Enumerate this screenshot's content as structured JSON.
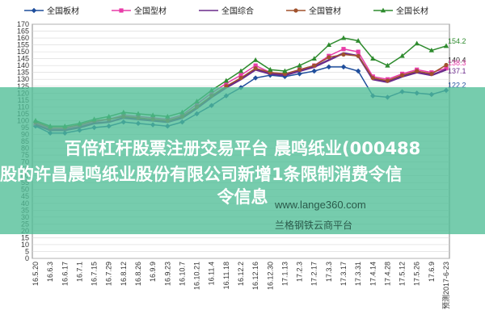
{
  "chart_data": {
    "type": "line",
    "title": "",
    "xlabel": "",
    "ylabel": "",
    "ylim": [
      0,
      170
    ],
    "yticks": [
      0,
      5,
      10,
      15,
      20,
      25,
      30,
      35,
      40,
      45,
      50,
      55,
      60,
      65,
      70,
      75,
      80,
      85,
      90,
      95,
      100,
      105,
      110,
      115,
      120,
      125,
      130,
      135,
      140,
      145,
      150,
      155,
      160,
      165,
      170
    ],
    "grid": true,
    "legend": "top",
    "categories": [
      "16.5.20",
      "16.6.3",
      "16.6.17",
      "16.7.1",
      "16.7.15",
      "16.7.29",
      "16.8.12",
      "16.8.26",
      "16.9.9",
      "16.9.23",
      "16.10.7",
      "16.10.21",
      "16.11.4",
      "16.11.18",
      "16.12.2",
      "16.12.16",
      "16.12.30",
      "17.1.13",
      "17.2.3",
      "17.2.17",
      "17.3.3",
      "17.3.17",
      "17.3.31",
      "17.4.14",
      "17.4.28",
      "17.5.12",
      "17.5.26",
      "17.6.9",
      "预测2017-6-23"
    ],
    "series": [
      {
        "name": "全国板材",
        "color": "#1f4e9c",
        "marker": "diamond",
        "values": [
          96,
          91,
          91,
          93,
          95,
          96,
          99,
          98,
          97,
          96,
          99,
          105,
          111,
          118,
          124,
          131,
          133,
          132,
          134,
          136,
          139,
          139,
          136,
          118,
          117,
          121,
          120,
          119,
          122
        ]
      },
      {
        "name": "全国型材",
        "color": "#e83ca8",
        "marker": "square",
        "values": [
          98,
          94,
          94,
          96,
          99,
          101,
          104,
          103,
          102,
          101,
          104,
          112,
          120,
          127,
          133,
          140,
          135,
          134,
          137,
          140,
          147,
          152,
          150,
          132,
          130,
          134,
          137,
          135,
          138
        ]
      },
      {
        "name": "全国综合",
        "color": "#6a2a8a",
        "marker": "line",
        "values": [
          97,
          93,
          93,
          95,
          98,
          99,
          102,
          101,
          100,
          99,
          102,
          109,
          117,
          124,
          130,
          137,
          134,
          133,
          136,
          139,
          144,
          149,
          147,
          130,
          128,
          132,
          135,
          133,
          137
        ]
      },
      {
        "name": "全国管材",
        "color": "#a0522d",
        "marker": "circle",
        "values": [
          99,
          95,
          95,
          97,
          100,
          101,
          103,
          102,
          101,
          100,
          103,
          110,
          118,
          125,
          131,
          138,
          135,
          134,
          137,
          140,
          146,
          148,
          147,
          131,
          129,
          133,
          136,
          134,
          140.4
        ]
      },
      {
        "name": "全国长材",
        "color": "#2e8b2e",
        "marker": "triangle",
        "values": [
          100,
          96,
          96,
          98,
          101,
          103,
          106,
          105,
          104,
          103,
          106,
          114,
          122,
          129,
          136,
          144,
          137,
          136,
          140,
          145,
          155,
          160,
          158,
          145,
          140,
          147,
          156,
          151,
          154.2
        ]
      }
    ],
    "end_labels": [
      "154.2",
      "140.4",
      "138.3",
      "137.1",
      "122.2"
    ]
  },
  "watermark": {
    "line1": "百倍杠杆股票注册交易平台 晨鸣纸业(000488",
    "line2": "股的许昌晨鸣纸业股份有限公司新增1条限制消费令信",
    "line3": "令信息",
    "url": "www.lange360.com",
    "site": "兰格钢铁云商平台"
  }
}
